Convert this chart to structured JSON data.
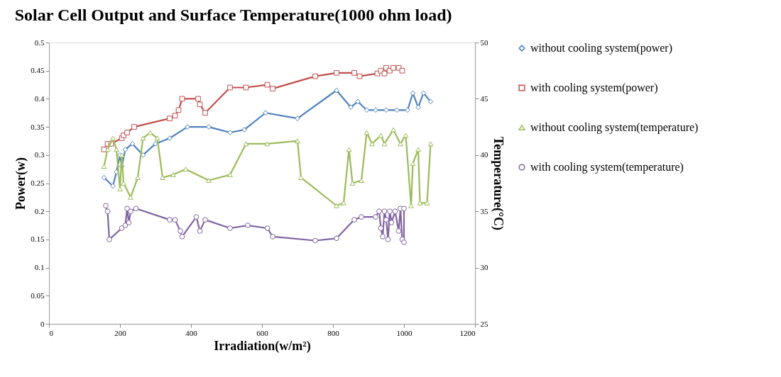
{
  "chart_data": {
    "type": "line",
    "title": "Solar Cell Output and Surface Temperature(1000 ohm load)",
    "xlabel": "Irradiation(w/m²)",
    "ylabel": "Power(w)",
    "y2label": "Temperature(°C)",
    "xlim": [
      0,
      1200
    ],
    "xticks": [
      0,
      200,
      400,
      600,
      800,
      1000,
      1200
    ],
    "ylim": [
      0,
      0.5
    ],
    "yticks": [
      0,
      0.05,
      0.1,
      0.15,
      0.2,
      0.25,
      0.3,
      0.35,
      0.4,
      0.45,
      0.5
    ],
    "y2lim": [
      25,
      50
    ],
    "y2ticks": [
      25,
      30,
      35,
      40,
      45,
      50
    ],
    "grid": false,
    "legend": "right",
    "line_style": "solid",
    "series": [
      {
        "name": "without cooling system(power)",
        "color": "#4f81bd",
        "marker": "diamond",
        "x": [
          155,
          180,
          190,
          200,
          205,
          215,
          235,
          265,
          300,
          340,
          390,
          450,
          510,
          550,
          610,
          700,
          810,
          850,
          870,
          895,
          920,
          950,
          980,
          1010,
          1025,
          1040,
          1055,
          1075
        ],
        "values": [
          0.26,
          0.245,
          0.27,
          0.3,
          0.28,
          0.31,
          0.32,
          0.3,
          0.32,
          0.33,
          0.35,
          0.35,
          0.34,
          0.345,
          0.375,
          0.365,
          0.415,
          0.385,
          0.395,
          0.38,
          0.38,
          0.38,
          0.38,
          0.38,
          0.41,
          0.385,
          0.41,
          0.395
        ]
      },
      {
        "name": "with cooling system(power)",
        "color": "#c0504d",
        "marker": "square",
        "x": [
          155,
          165,
          175,
          205,
          210,
          220,
          240,
          340,
          355,
          365,
          375,
          420,
          425,
          440,
          510,
          555,
          615,
          630,
          750,
          810,
          860,
          875,
          925,
          935,
          945,
          950,
          960,
          970,
          985,
          995
        ],
        "values": [
          0.31,
          0.32,
          0.32,
          0.33,
          0.335,
          0.34,
          0.35,
          0.365,
          0.37,
          0.38,
          0.4,
          0.4,
          0.39,
          0.375,
          0.42,
          0.42,
          0.425,
          0.418,
          0.44,
          0.446,
          0.446,
          0.44,
          0.445,
          0.45,
          0.445,
          0.455,
          0.45,
          0.455,
          0.455,
          0.45
        ]
      },
      {
        "name": "without cooling system(temperature)",
        "color": "#9bbb59",
        "marker": "triangle",
        "axis": "y2",
        "x": [
          155,
          165,
          180,
          190,
          200,
          205,
          210,
          230,
          250,
          265,
          285,
          305,
          320,
          350,
          385,
          450,
          510,
          555,
          615,
          700,
          710,
          810,
          830,
          845,
          855,
          880,
          895,
          910,
          935,
          945,
          970,
          990,
          1005,
          1020,
          1025,
          1040,
          1045,
          1065,
          1075
        ],
        "values": [
          39,
          40.5,
          41.5,
          40.5,
          37,
          40,
          37.5,
          36.25,
          38,
          41.5,
          42,
          41.5,
          38,
          38.25,
          38.75,
          37.75,
          38.25,
          41,
          41,
          41.25,
          38,
          35.5,
          35.75,
          40.5,
          37.5,
          37.75,
          42,
          41,
          41.75,
          41,
          42.25,
          41,
          41.75,
          35.5,
          39.25,
          40.5,
          35.75,
          35.75,
          41
        ]
      },
      {
        "name": "with cooling system(temperature)",
        "color": "#8064a2",
        "marker": "circle",
        "axis": "y2",
        "x": [
          160,
          165,
          170,
          205,
          215,
          220,
          225,
          230,
          245,
          340,
          355,
          370,
          375,
          415,
          425,
          440,
          510,
          560,
          615,
          630,
          750,
          810,
          860,
          880,
          920,
          930,
          935,
          940,
          945,
          950,
          955,
          960,
          965,
          975,
          985,
          990,
          995,
          1000,
          1000
        ],
        "values": [
          35.5,
          35,
          32.5,
          33.5,
          33.75,
          35.25,
          34,
          35,
          35.25,
          34.25,
          34.25,
          33.25,
          32.75,
          34.5,
          33.25,
          34.25,
          33.5,
          33.75,
          33.5,
          32.75,
          32.4,
          32.6,
          34.25,
          34.5,
          34.5,
          35,
          33.5,
          32.75,
          35,
          34.25,
          32.5,
          35,
          34,
          35,
          33.25,
          35.25,
          32.5,
          32.25,
          35.25
        ]
      }
    ]
  }
}
